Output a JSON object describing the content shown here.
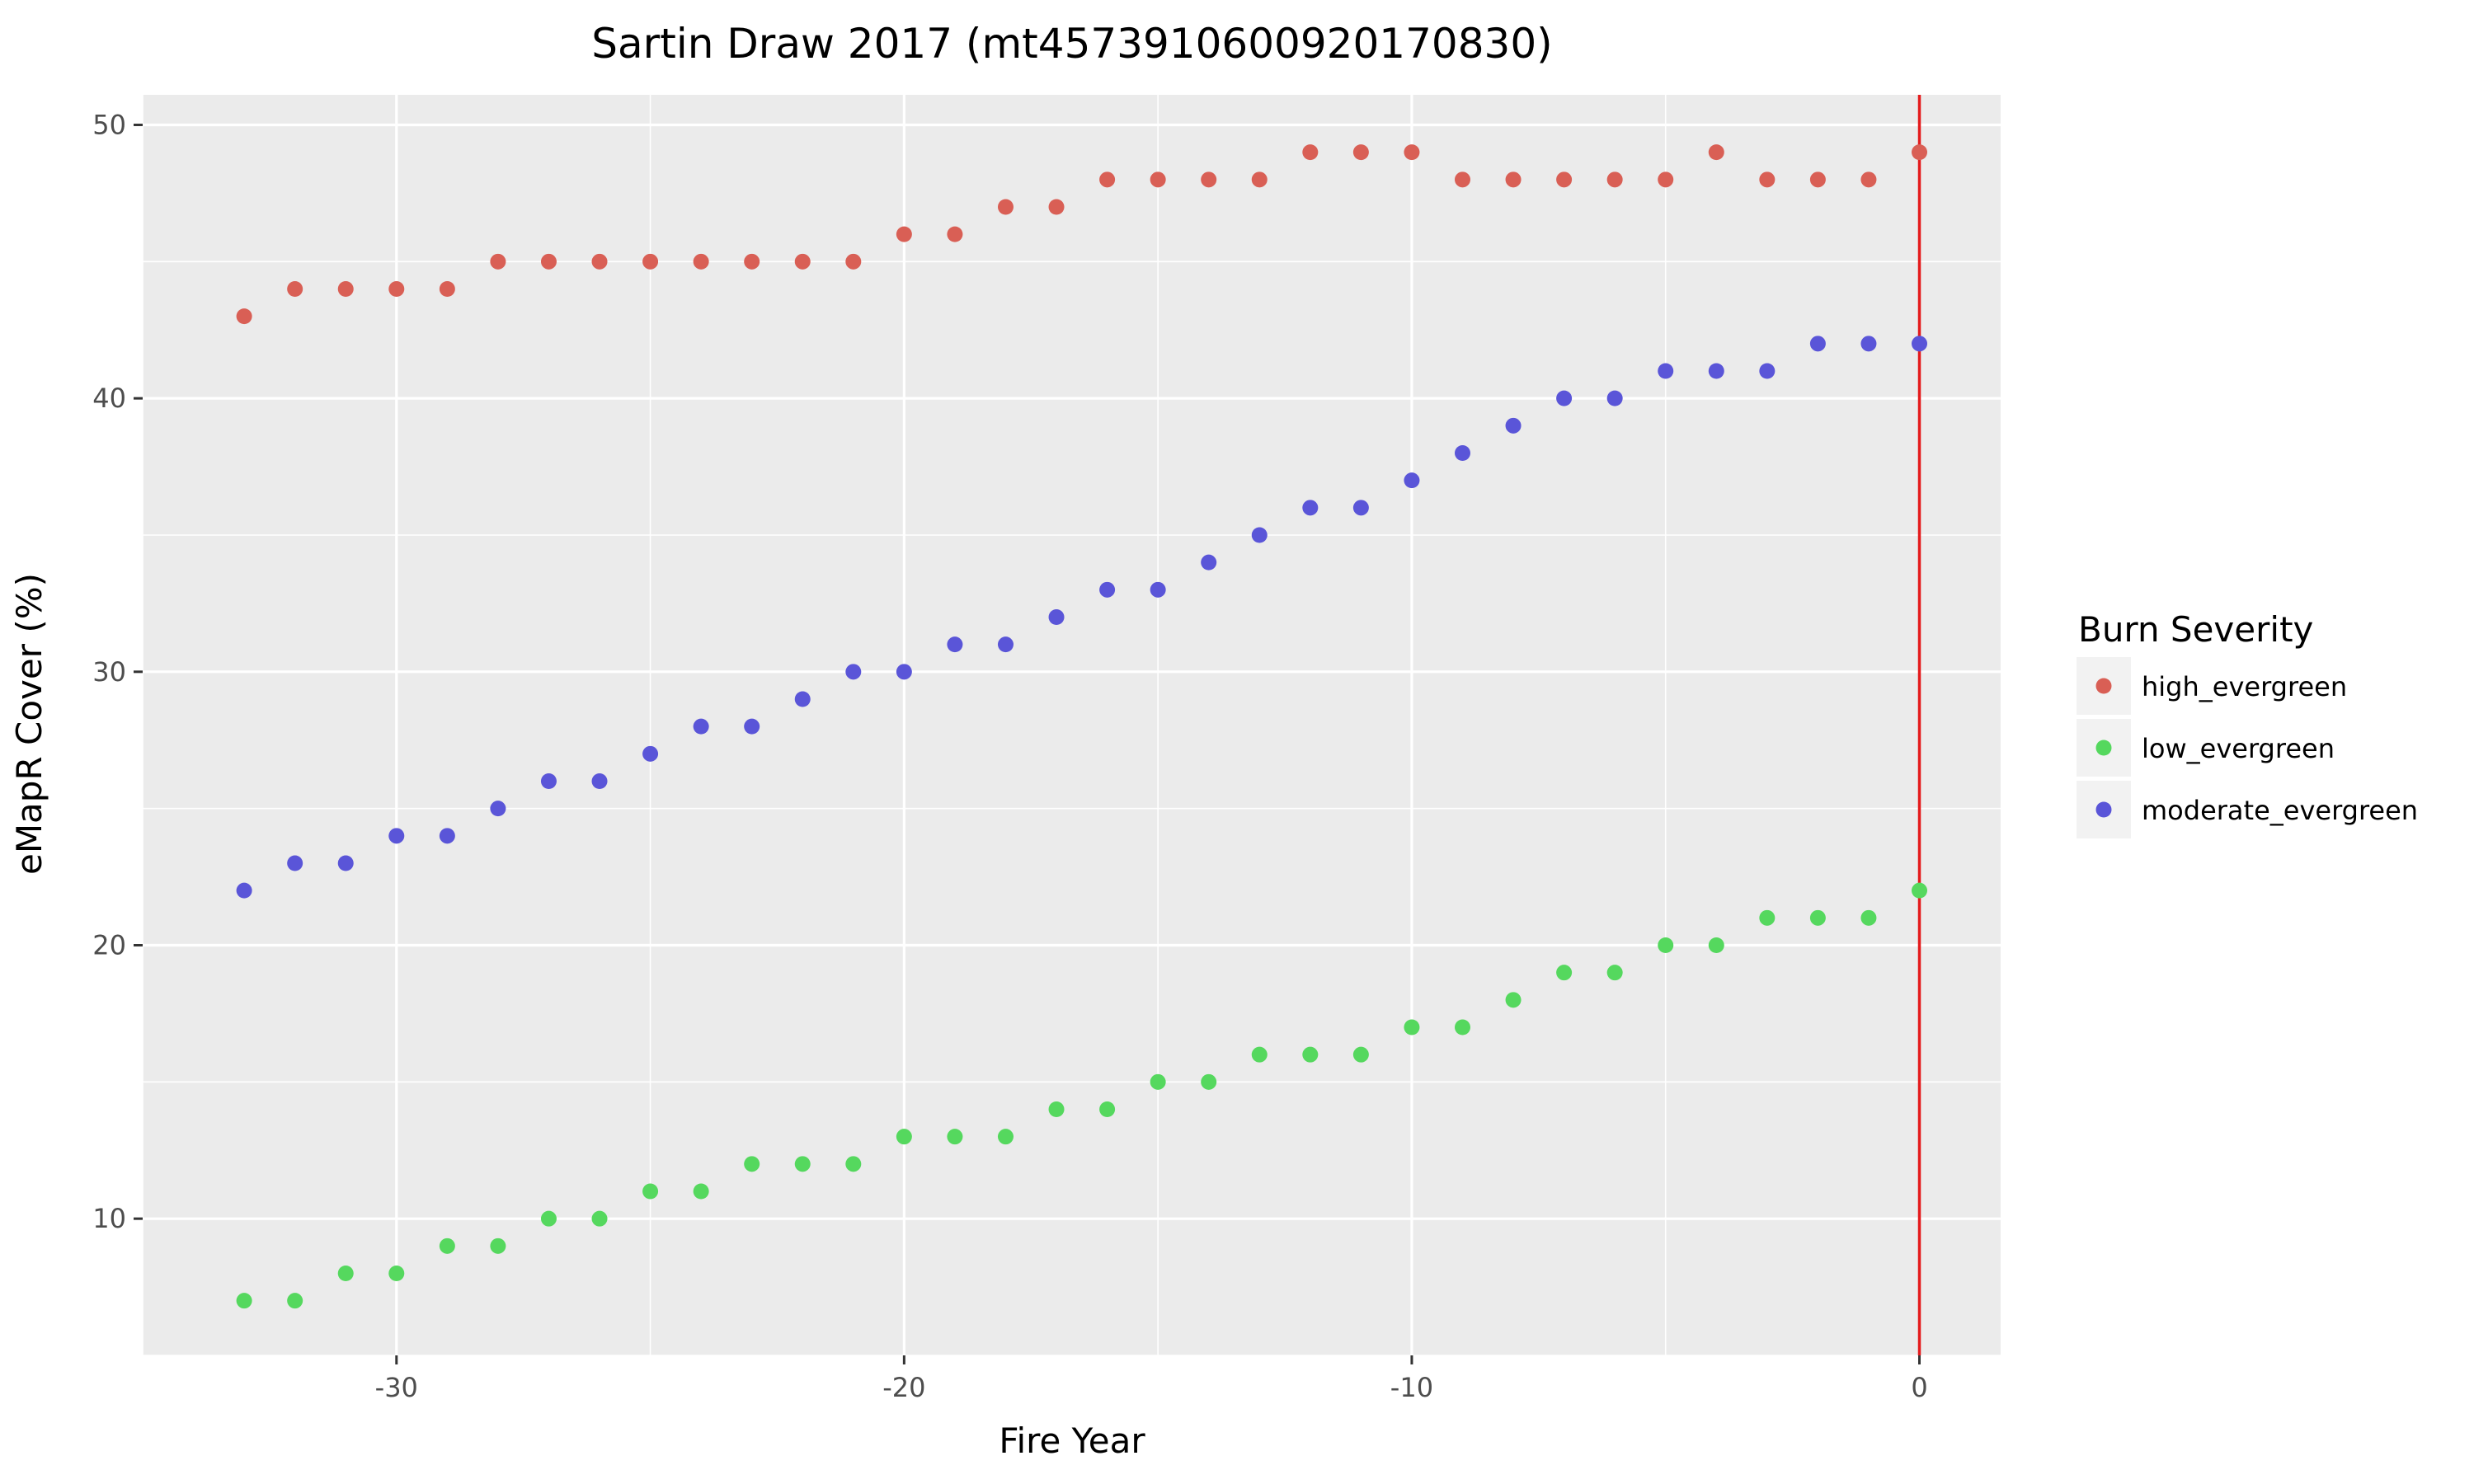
{
  "chart_data": {
    "type": "scatter",
    "title": "Sartin Draw 2017 (mt4573910600920170830)",
    "xlabel": "Fire Year",
    "ylabel": "eMapR Cover (%)",
    "xlim": [
      -35,
      1.6
    ],
    "ylim": [
      5,
      51.1
    ],
    "x_ticks": [
      -30,
      -20,
      -10,
      0
    ],
    "y_ticks": [
      10,
      20,
      30,
      40,
      50
    ],
    "grid": true,
    "vline": {
      "x": 0,
      "color": "#e41a1c"
    },
    "legend": {
      "title": "Burn Severity",
      "placement": "right"
    },
    "x": [
      -33,
      -32,
      -31,
      -30,
      -29,
      -28,
      -27,
      -26,
      -25,
      -24,
      -23,
      -22,
      -21,
      -20,
      -19,
      -18,
      -17,
      -16,
      -15,
      -14,
      -13,
      -12,
      -11,
      -10,
      -9,
      -8,
      -7,
      -6,
      -5,
      -4,
      -3,
      -2,
      -1,
      0
    ],
    "series": [
      {
        "name": "high_evergreen",
        "color": "#d95f55",
        "values": [
          43,
          44,
          44,
          44,
          44,
          45,
          45,
          45,
          45,
          45,
          45,
          45,
          45,
          46,
          46,
          47,
          47,
          48,
          48,
          48,
          48,
          49,
          49,
          49,
          48,
          48,
          48,
          48,
          48,
          49,
          48,
          48,
          48,
          49
        ]
      },
      {
        "name": "low_evergreen",
        "color": "#55d85e",
        "values": [
          7,
          7,
          8,
          8,
          9,
          9,
          10,
          10,
          11,
          11,
          12,
          12,
          12,
          13,
          13,
          13,
          14,
          14,
          15,
          15,
          16,
          16,
          16,
          17,
          17,
          18,
          19,
          19,
          20,
          20,
          21,
          21,
          21,
          22
        ]
      },
      {
        "name": "moderate_evergreen",
        "color": "#5a55d8",
        "values": [
          22,
          23,
          23,
          24,
          24,
          25,
          26,
          26,
          27,
          28,
          28,
          29,
          30,
          30,
          31,
          31,
          32,
          33,
          33,
          34,
          35,
          36,
          36,
          37,
          38,
          39,
          40,
          40,
          41,
          41,
          41,
          42,
          42,
          42
        ]
      }
    ]
  }
}
